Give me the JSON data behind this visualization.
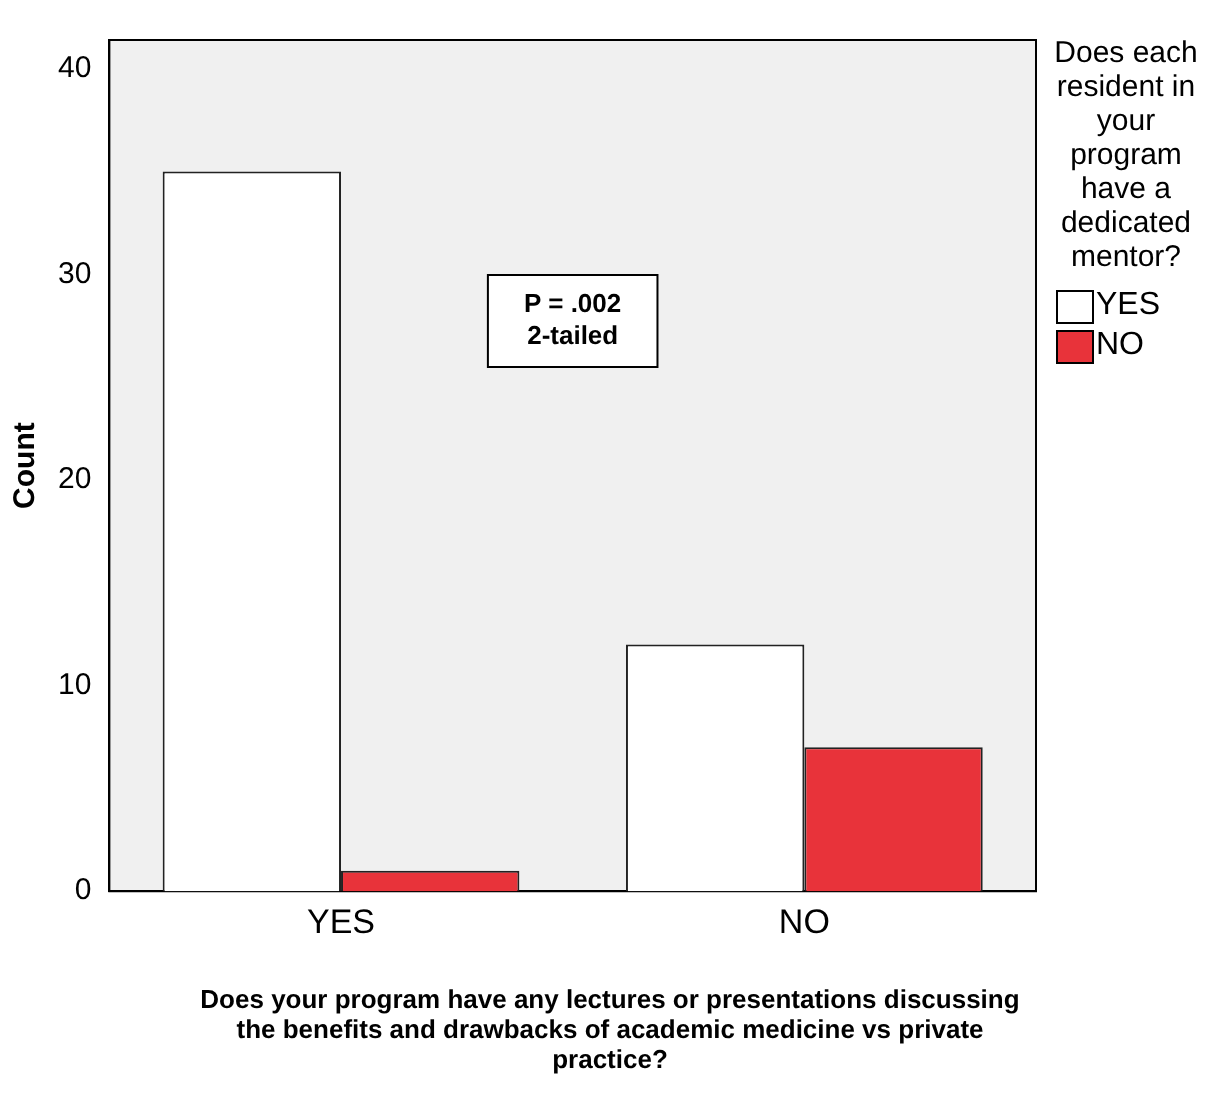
{
  "chart_data": {
    "type": "bar",
    "ylabel": "Count",
    "xlabel": "Does your program have any lectures or presentations discussing the benefits and drawbacks of academic medicine vs private practice?",
    "legend_title": "Does each resident in your program have a dedicated mentor?",
    "categories": [
      "YES",
      "NO"
    ],
    "series": [
      {
        "name": "YES",
        "color": "#ffffff",
        "values": [
          35,
          12
        ]
      },
      {
        "name": "NO",
        "color": "#e8333a",
        "values": [
          1,
          7
        ]
      }
    ],
    "ylim": [
      0,
      41.4
    ],
    "yticks": [
      0,
      10,
      20,
      30,
      40
    ],
    "grid": false,
    "legend": "right",
    "annotations": [
      "P = .002\n2-tailed"
    ]
  }
}
